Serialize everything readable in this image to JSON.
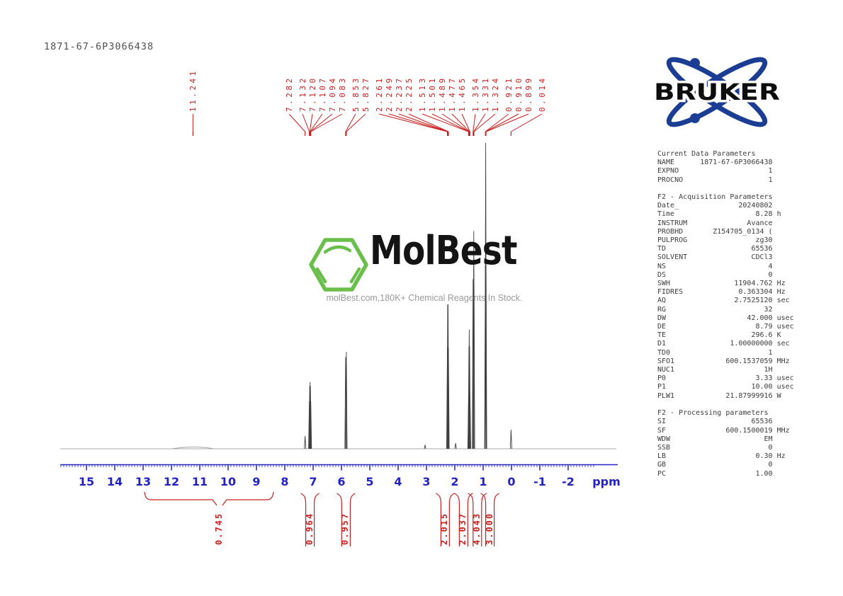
{
  "page": {
    "title": "1871-67-6P3066438"
  },
  "watermark": {
    "brand": "MolBest",
    "tagline": "molBest.com,180K+ Chemical Reagents In Stock.",
    "logo": "hexagon-benzene-icon",
    "green": "#6abf4a",
    "tagline_color": "#9b9b9b"
  },
  "bruker": {
    "label": "BRUKER",
    "blue": "#1b3e94"
  },
  "params_panel": {
    "sections": [
      {
        "title": "Current Data Parameters",
        "rows": [
          [
            "NAME",
            "1871-67-6P3066438",
            ""
          ],
          [
            "EXPNO",
            "1",
            ""
          ],
          [
            "PROCNO",
            "1",
            ""
          ]
        ]
      },
      {
        "title": "F2 - Acquisition Parameters",
        "rows": [
          [
            "Date_",
            "20240802",
            ""
          ],
          [
            "Time",
            "8.28",
            "h"
          ],
          [
            "INSTRUM",
            "Avance",
            ""
          ],
          [
            "PROBHD",
            "Z154705_0134 (",
            ""
          ],
          [
            "PULPROG",
            "zg30",
            ""
          ],
          [
            "TD",
            "65536",
            ""
          ],
          [
            "SOLVENT",
            "CDCl3",
            ""
          ],
          [
            "NS",
            "4",
            ""
          ],
          [
            "DS",
            "0",
            ""
          ],
          [
            "SWH",
            "11904.762",
            "Hz"
          ],
          [
            "FIDRES",
            "0.363304",
            "Hz"
          ],
          [
            "AQ",
            "2.7525120",
            "sec"
          ],
          [
            "RG",
            "32",
            ""
          ],
          [
            "DW",
            "42.000",
            "usec"
          ],
          [
            "DE",
            "8.79",
            "usec"
          ],
          [
            "TE",
            "296.6",
            "K"
          ],
          [
            "D1",
            "1.00000000",
            "sec"
          ],
          [
            "TD0",
            "1",
            ""
          ],
          [
            "SFO1",
            "600.1537059",
            "MHz"
          ],
          [
            "NUC1",
            "1H",
            ""
          ],
          [
            "P0",
            "3.33",
            "usec"
          ],
          [
            "P1",
            "10.00",
            "usec"
          ],
          [
            "PLW1",
            "21.87999916",
            "W"
          ]
        ]
      },
      {
        "title": "F2 - Processing parameters",
        "rows": [
          [
            "SI",
            "65536",
            ""
          ],
          [
            "SF",
            "600.1500019",
            "MHz"
          ],
          [
            "WDW",
            "EM",
            ""
          ],
          [
            "SSB",
            "0",
            ""
          ],
          [
            "LB",
            "0.30",
            "Hz"
          ],
          [
            "GB",
            "0",
            ""
          ],
          [
            "PC",
            "1.00",
            ""
          ]
        ]
      }
    ]
  },
  "chart_data": {
    "type": "line",
    "title": "1H NMR spectrum 1871-67-6P3066438",
    "xlabel": "ppm",
    "x_axis": {
      "min": -2.9,
      "max": 15.9,
      "reversed": true,
      "major_ticks": [
        15,
        14,
        13,
        12,
        11,
        10,
        9,
        8,
        7,
        6,
        5,
        4,
        3,
        2,
        1,
        0,
        -1,
        -2
      ],
      "minor_step": 0.1,
      "unit_label": "ppm"
    },
    "colors": {
      "axis": "#2323c3",
      "annotation": "#c8201e",
      "trace": "#3f3f3f",
      "baseline": "#8f8f8f"
    },
    "peak_labels": [
      "11.241",
      "7.282",
      "7.132",
      "7.120",
      "7.107",
      "7.094",
      "7.083",
      "5.853",
      "5.827",
      "2.261",
      "2.249",
      "2.237",
      "2.225",
      "1.513",
      "1.501",
      "1.489",
      "1.477",
      "1.465",
      "1.354",
      "1.331",
      "1.324",
      "0.921",
      "0.910",
      "0.899",
      "0.014"
    ],
    "peaks": [
      {
        "ppm": 11.24,
        "rel": 0.01,
        "broad": true
      },
      {
        "ppm": 7.282,
        "rel": 0.042
      },
      {
        "ppm": 7.132,
        "rel": 0.155
      },
      {
        "ppm": 7.12,
        "rel": 0.205
      },
      {
        "ppm": 7.107,
        "rel": 0.218
      },
      {
        "ppm": 7.094,
        "rel": 0.205
      },
      {
        "ppm": 7.083,
        "rel": 0.155
      },
      {
        "ppm": 5.853,
        "rel": 0.3
      },
      {
        "ppm": 5.827,
        "rel": 0.317
      },
      {
        "ppm": 3.05,
        "rel": 0.013
      },
      {
        "ppm": 2.261,
        "rel": 0.33
      },
      {
        "ppm": 2.249,
        "rel": 0.472
      },
      {
        "ppm": 2.237,
        "rel": 0.472
      },
      {
        "ppm": 2.225,
        "rel": 0.33
      },
      {
        "ppm": 1.97,
        "rel": 0.018
      },
      {
        "ppm": 1.513,
        "rel": 0.18
      },
      {
        "ppm": 1.501,
        "rel": 0.335
      },
      {
        "ppm": 1.489,
        "rel": 0.39
      },
      {
        "ppm": 1.477,
        "rel": 0.335
      },
      {
        "ppm": 1.465,
        "rel": 0.18
      },
      {
        "ppm": 1.354,
        "rel": 0.555
      },
      {
        "ppm": 1.331,
        "rel": 0.712
      },
      {
        "ppm": 1.324,
        "rel": 0.58
      },
      {
        "ppm": 0.921,
        "rel": 0.6
      },
      {
        "ppm": 0.91,
        "rel": 1.0
      },
      {
        "ppm": 0.899,
        "rel": 0.64
      },
      {
        "ppm": 0.014,
        "rel": 0.062
      }
    ],
    "integrals": [
      {
        "value": "0.745",
        "from_ppm": 13.0,
        "to_ppm": 8.35,
        "label_ppm": 10.3
      },
      {
        "value": "0.964",
        "ppm": 7.11
      },
      {
        "value": "0.957",
        "ppm": 5.84
      },
      {
        "value": "2.015",
        "ppm": 2.24
      },
      {
        "value": "2.037",
        "ppm": 1.49
      },
      {
        "value": "4.043",
        "ppm": 1.33
      },
      {
        "value": "3.000",
        "ppm": 0.91
      }
    ]
  }
}
